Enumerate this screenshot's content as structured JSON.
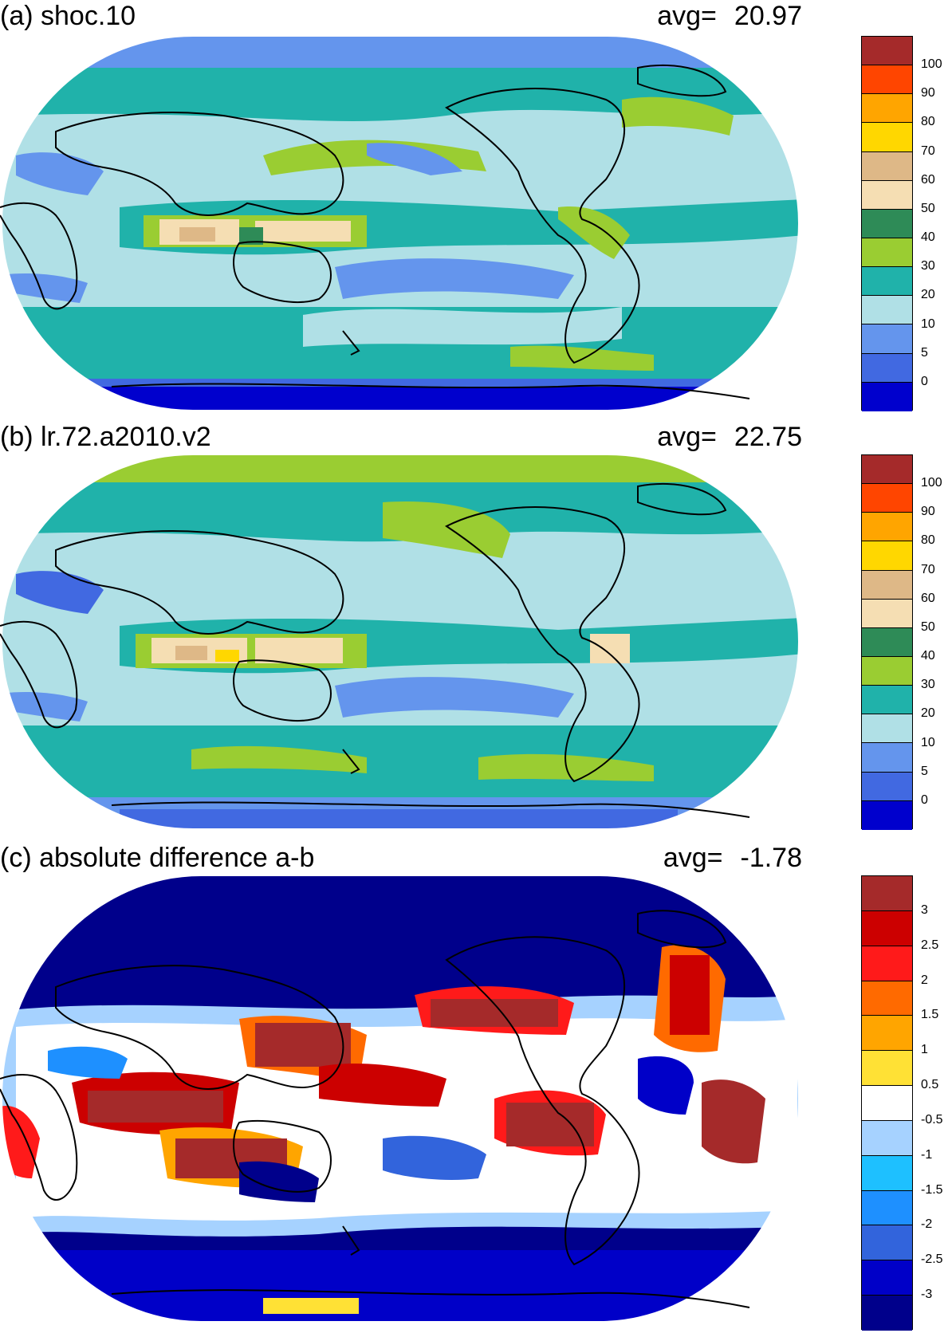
{
  "panels": [
    {
      "title": "(a) shoc.10",
      "avg_label": "avg=",
      "avg_value": "20.97",
      "colorbar": {
        "colors": [
          "#a52a2a",
          "#ff4500",
          "#ffa500",
          "#ffd700",
          "#deb887",
          "#f5deb3",
          "#2e8b57",
          "#9acd32",
          "#20b2aa",
          "#b0e0e6",
          "#6495ed",
          "#4169e1",
          "#0000cd"
        ],
        "labels": [
          "100",
          "90",
          "80",
          "70",
          "60",
          "50",
          "40",
          "30",
          "20",
          "10",
          "5",
          "0"
        ]
      }
    },
    {
      "title": "(b) lr.72.a2010.v2",
      "avg_label": "avg=",
      "avg_value": "22.75",
      "colorbar": {
        "colors": [
          "#a52a2a",
          "#ff4500",
          "#ffa500",
          "#ffd700",
          "#deb887",
          "#f5deb3",
          "#2e8b57",
          "#9acd32",
          "#20b2aa",
          "#b0e0e6",
          "#6495ed",
          "#4169e1",
          "#0000cd"
        ],
        "labels": [
          "100",
          "90",
          "80",
          "70",
          "60",
          "50",
          "40",
          "30",
          "20",
          "10",
          "5",
          "0"
        ]
      }
    },
    {
      "title": "(c) absolute difference a-b",
      "avg_label": "avg=",
      "avg_value": "-1.78",
      "colorbar": {
        "colors": [
          "#a52a2a",
          "#cc0000",
          "#ff1a1a",
          "#ff6a00",
          "#ffa500",
          "#ffe135",
          "#ffffff",
          "#a6d2ff",
          "#1ec0ff",
          "#1e90ff",
          "#3264dc",
          "#0000c8",
          "#00008b"
        ],
        "labels": [
          "3",
          "2.5",
          "2",
          "1.5",
          "1",
          "0.5",
          "-0.5",
          "-1",
          "-1.5",
          "-2",
          "-2.5",
          "-3"
        ]
      }
    }
  ]
}
